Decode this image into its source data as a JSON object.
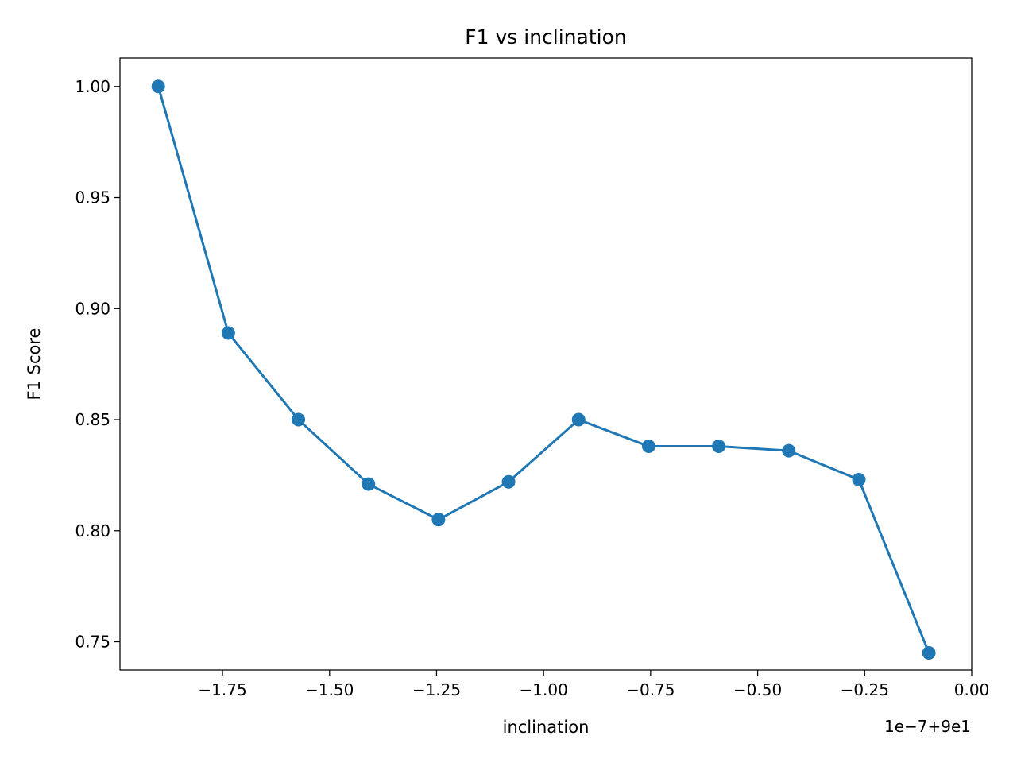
{
  "chart_data": {
    "type": "line",
    "title": "F1 vs inclination",
    "xlabel": "inclination",
    "ylabel": "F1 Score",
    "x_offset_label": "1e−7+9e1",
    "x": [
      -1.9,
      -1.7364,
      -1.5727,
      -1.4091,
      -1.2455,
      -1.0818,
      -0.9182,
      -0.7545,
      -0.5909,
      -0.4273,
      -0.2636,
      -0.1
    ],
    "x_tick_values": [
      -1.75,
      -1.5,
      -1.25,
      -1.0,
      -0.75,
      -0.5,
      -0.25,
      0.0
    ],
    "x_tick_labels": [
      "−1.75",
      "−1.50",
      "−1.25",
      "−1.00",
      "−0.75",
      "−0.50",
      "−0.25",
      "0.00"
    ],
    "y_tick_values": [
      0.75,
      0.8,
      0.85,
      0.9,
      0.95,
      1.0
    ],
    "y_tick_labels": [
      "0.75",
      "0.80",
      "0.85",
      "0.90",
      "0.95",
      "1.00"
    ],
    "series": [
      {
        "values": [
          1.0,
          0.889,
          0.85,
          0.821,
          0.805,
          0.822,
          0.85,
          0.838,
          0.838,
          0.836,
          0.823,
          0.745
        ],
        "color": "#1f77b4"
      }
    ],
    "xlim": [
      -1.9895,
      0.0
    ],
    "ylim": [
      0.7373,
      1.0128
    ],
    "grid": false,
    "legend": "none"
  }
}
